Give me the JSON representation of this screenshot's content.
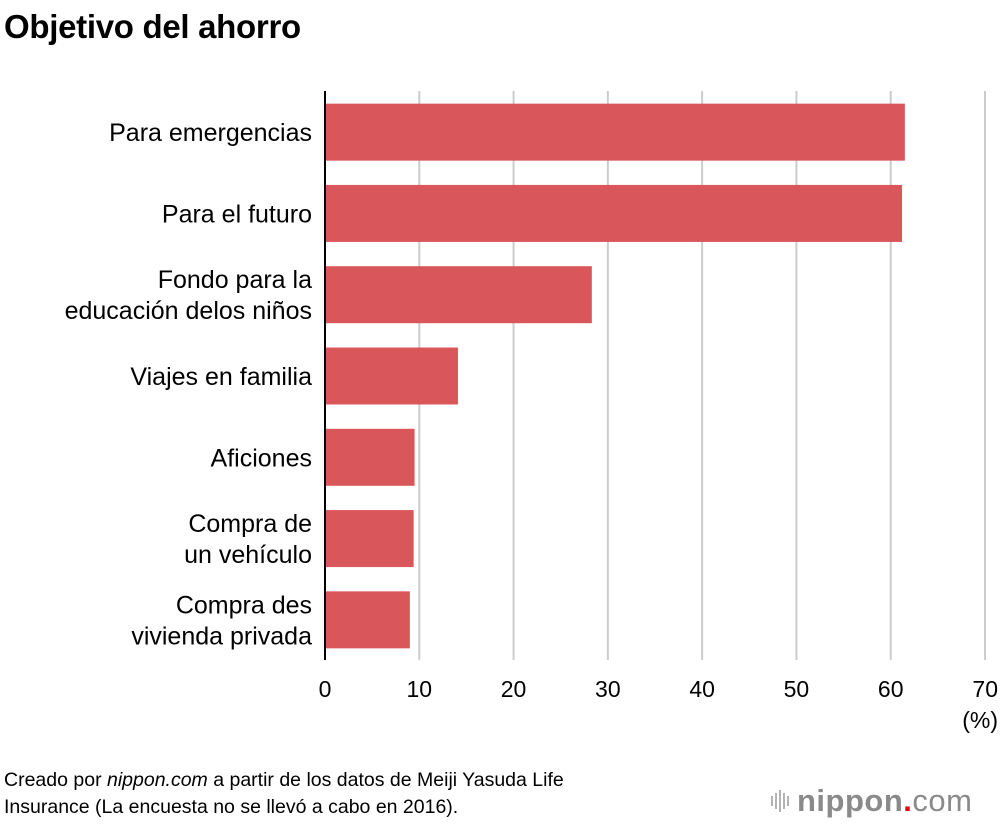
{
  "chart_data": {
    "type": "bar",
    "orientation": "horizontal",
    "title": "Objetivo del ahorro",
    "categories": [
      [
        "Para emergencias"
      ],
      [
        "Para el futuro"
      ],
      [
        "Fondo para la",
        "educación delos niños"
      ],
      [
        "Viajes en familia"
      ],
      [
        "Aficiones"
      ],
      [
        "Compra de",
        "un vehículo"
      ],
      [
        "Compra des",
        "vivienda privada"
      ]
    ],
    "values": [
      61.5,
      61.2,
      28.3,
      14.1,
      9.5,
      9.4,
      9.0
    ],
    "xlabel": "(%)",
    "ylabel": "",
    "xlim": [
      0,
      70
    ],
    "xticks": [
      "0",
      "10",
      "20",
      "30",
      "40",
      "50",
      "60",
      "70"
    ],
    "grid": true,
    "bar_color": "#d9565a",
    "grid_color": "#cccccc"
  },
  "footer": {
    "source_prefix": "Creado por ",
    "source_site": "nippon.com",
    "source_suffix": " a partir de los datos de Meiji Yasuda Life",
    "source_line2": "Insurance (La encuesta no se llevó a cabo en 2016)."
  },
  "logo": {
    "name": "nippon",
    "dot": ".",
    "tld": "com",
    "accent_color": "#e60012"
  }
}
